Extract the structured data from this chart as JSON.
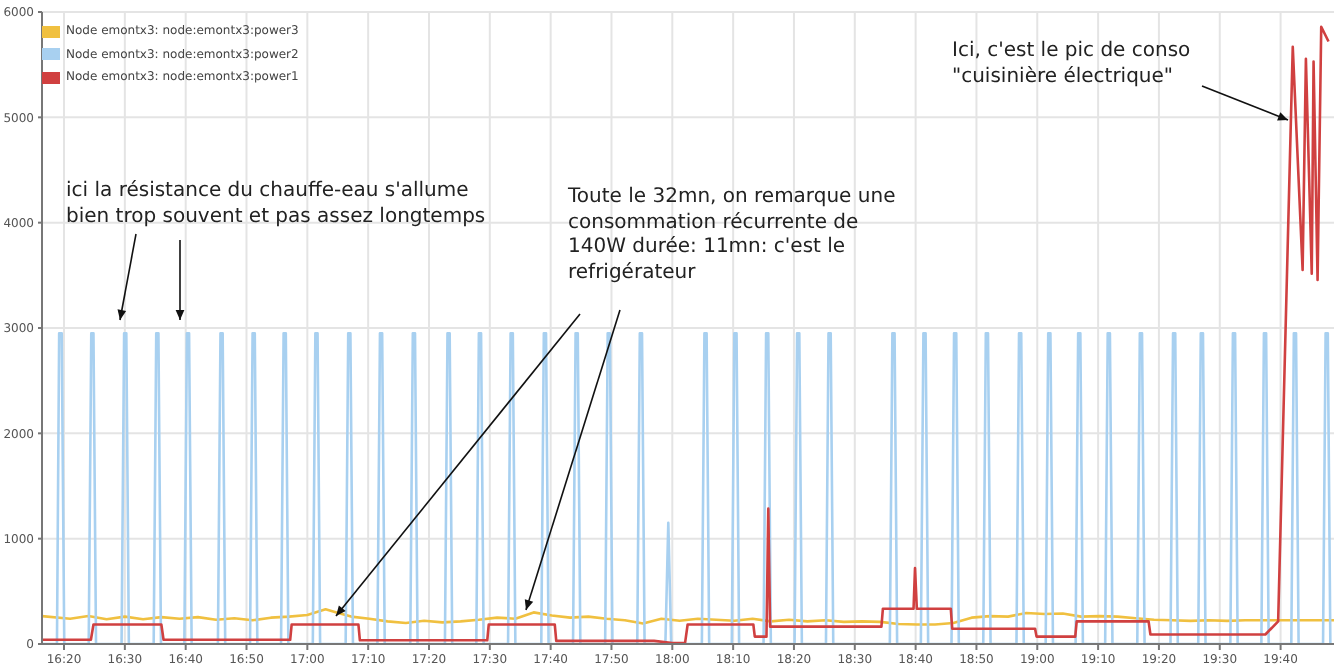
{
  "chart_data": {
    "type": "line",
    "xlim": [
      16.273,
      19.813
    ],
    "ylim": [
      0,
      6000
    ],
    "xticks": [
      {
        "value": 16.3333,
        "label": "16:20"
      },
      {
        "value": 16.5,
        "label": "16:30"
      },
      {
        "value": 16.6667,
        "label": "16:40"
      },
      {
        "value": 16.8333,
        "label": "16:50"
      },
      {
        "value": 17,
        "label": "17:00"
      },
      {
        "value": 17.1667,
        "label": "17:10"
      },
      {
        "value": 17.3333,
        "label": "17:20"
      },
      {
        "value": 17.5,
        "label": "17:30"
      },
      {
        "value": 17.6667,
        "label": "17:40"
      },
      {
        "value": 17.8333,
        "label": "17:50"
      },
      {
        "value": 18,
        "label": "18:00"
      },
      {
        "value": 18.1667,
        "label": "18:10"
      },
      {
        "value": 18.3333,
        "label": "18:20"
      },
      {
        "value": 18.5,
        "label": "18:30"
      },
      {
        "value": 18.6667,
        "label": "18:40"
      },
      {
        "value": 18.8333,
        "label": "18:50"
      },
      {
        "value": 19,
        "label": "19:00"
      },
      {
        "value": 19.1667,
        "label": "19:10"
      },
      {
        "value": 19.3333,
        "label": "19:20"
      },
      {
        "value": 19.5,
        "label": "19:30"
      },
      {
        "value": 19.6667,
        "label": "19:40"
      }
    ],
    "yticks": [
      0,
      1000,
      2000,
      3000,
      4000,
      5000,
      6000
    ],
    "grid": true,
    "legend": "top left",
    "marker": "none",
    "line_style": "solid",
    "annotations": [
      "ici la résistance du chauffe-eau s'allume\nbien trop souvent et pas assez longtemps",
      "Toute le 32mn, on remarque une\nconsommation récurrente de\n140W durée: 11mn: c'est le\nrefrigérateur",
      "Ici, c'est le pic de conso\n\"cuisinière électrique\""
    ],
    "series": [
      {
        "name": "Node emontx3: node:emontx3:power3",
        "color": "#f0c040",
        "x": [
          16.273,
          16.35,
          16.4,
          16.45,
          16.5,
          16.55,
          16.6,
          16.65,
          16.7,
          16.75,
          16.8,
          16.85,
          16.9,
          16.95,
          17,
          17.05,
          17.08,
          17.12,
          17.17,
          17.22,
          17.27,
          17.32,
          17.37,
          17.42,
          17.47,
          17.52,
          17.57,
          17.62,
          17.67,
          17.72,
          17.77,
          17.82,
          17.87,
          17.92,
          17.97,
          18.02,
          18.07,
          18.12,
          18.17,
          18.22,
          18.27,
          18.32,
          18.37,
          18.42,
          18.47,
          18.52,
          18.57,
          18.62,
          18.67,
          18.72,
          18.77,
          18.82,
          18.87,
          18.92,
          18.97,
          19.02,
          19.07,
          19.12,
          19.17,
          19.22,
          19.27,
          19.32,
          19.37,
          19.42,
          19.47,
          19.52,
          19.57,
          19.62,
          19.67,
          19.72,
          19.77,
          19.813
        ],
        "values": [
          265,
          240,
          265,
          235,
          260,
          235,
          255,
          240,
          255,
          230,
          245,
          225,
          250,
          260,
          275,
          330,
          300,
          260,
          240,
          215,
          200,
          220,
          205,
          215,
          230,
          250,
          240,
          300,
          270,
          250,
          260,
          240,
          225,
          195,
          240,
          220,
          240,
          230,
          220,
          240,
          215,
          230,
          215,
          225,
          210,
          215,
          210,
          190,
          185,
          185,
          200,
          250,
          265,
          260,
          295,
          285,
          290,
          260,
          265,
          260,
          245,
          230,
          225,
          220,
          225,
          220,
          225,
          225,
          225,
          225,
          225,
          225
        ]
      },
      {
        "name": "Node emontx3: node:emontx3:power2",
        "color": "#a8d0f0",
        "x": [
          16.273,
          16.314,
          16.32,
          16.327,
          16.334,
          16.401,
          16.408,
          16.414,
          16.421,
          16.491,
          16.498,
          16.504,
          16.511,
          16.579,
          16.586,
          16.592,
          16.599,
          16.663,
          16.67,
          16.676,
          16.683,
          16.755,
          16.762,
          16.768,
          16.775,
          16.843,
          16.85,
          16.856,
          16.863,
          16.928,
          16.935,
          16.941,
          16.948,
          17.015,
          17.022,
          17.028,
          17.035,
          17.105,
          17.112,
          17.118,
          17.125,
          17.192,
          17.199,
          17.205,
          17.212,
          17.282,
          17.289,
          17.295,
          17.302,
          17.377,
          17.384,
          17.39,
          17.397,
          17.463,
          17.47,
          17.476,
          17.483,
          17.55,
          17.557,
          17.563,
          17.57,
          17.641,
          17.648,
          17.654,
          17.661,
          17.728,
          17.735,
          17.741,
          17.748,
          17.816,
          17.823,
          17.829,
          17.836,
          17.904,
          17.911,
          17.917,
          17.924,
          17.981,
          17.989,
          17.997,
          18.081,
          18.088,
          18.094,
          18.101,
          18.163,
          18.17,
          18.176,
          18.183,
          18.25,
          18.257,
          18.263,
          18.27,
          18.335,
          18.342,
          18.348,
          18.355,
          18.421,
          18.428,
          18.434,
          18.441,
          18.596,
          18.603,
          18.609,
          18.616,
          18.681,
          18.688,
          18.694,
          18.701,
          18.765,
          18.772,
          18.778,
          18.785,
          18.852,
          18.859,
          18.865,
          18.872,
          18.943,
          18.95,
          18.956,
          18.963,
          19.023,
          19.03,
          19.036,
          19.043,
          19.105,
          19.112,
          19.118,
          19.125,
          19.186,
          19.193,
          19.199,
          19.206,
          19.274,
          19.281,
          19.287,
          19.294,
          19.365,
          19.372,
          19.378,
          19.385,
          19.441,
          19.448,
          19.454,
          19.461,
          19.529,
          19.536,
          19.542,
          19.549,
          19.614,
          19.621,
          19.627,
          19.634,
          19.696,
          19.703,
          19.709,
          19.716,
          19.783,
          19.79,
          19.796,
          19.803
        ],
        "values": [
          0,
          0,
          2950,
          2950,
          0,
          0,
          2950,
          2950,
          0,
          0,
          2950,
          2950,
          0,
          0,
          2950,
          2950,
          0,
          0,
          2950,
          2950,
          0,
          0,
          2950,
          2950,
          0,
          0,
          2950,
          2950,
          0,
          0,
          2950,
          2950,
          0,
          0,
          2950,
          2950,
          0,
          0,
          2950,
          2950,
          0,
          0,
          2950,
          2950,
          0,
          0,
          2950,
          2950,
          0,
          0,
          2950,
          2950,
          0,
          0,
          2950,
          2950,
          0,
          0,
          2950,
          2950,
          0,
          0,
          2950,
          2950,
          0,
          0,
          2950,
          2950,
          0,
          0,
          2950,
          2950,
          0,
          0,
          2950,
          2950,
          0,
          0,
          1150,
          0,
          0,
          2950,
          2950,
          0,
          0,
          2950,
          2950,
          0,
          0,
          2950,
          2950,
          0,
          0,
          2950,
          2950,
          0,
          0,
          2950,
          2950,
          0,
          0,
          2950,
          2950,
          0,
          0,
          2950,
          2950,
          0,
          0,
          2950,
          2950,
          0,
          0,
          2950,
          2950,
          0,
          0,
          2950,
          2950,
          0,
          0,
          2950,
          2950,
          0,
          0,
          2950,
          2950,
          0,
          0,
          2950,
          2950,
          0,
          0,
          2950,
          2950,
          0,
          0,
          2950,
          2950,
          0,
          0,
          2950,
          2950,
          0,
          0,
          2950,
          2950,
          0,
          0,
          2950,
          2950,
          0,
          0,
          2950,
          2950,
          0,
          0,
          2950,
          2950,
          0
        ]
      },
      {
        "name": "Node emontx3: node:emontx3:power1",
        "color": "#d04040",
        "x": [
          16.273,
          16.407,
          16.414,
          16.6,
          16.606,
          16.953,
          16.957,
          17.14,
          17.144,
          17.493,
          17.497,
          17.678,
          17.682,
          17.95,
          18,
          18.035,
          18.042,
          18.222,
          18.226,
          18.258,
          18.263,
          18.268,
          18.573,
          18.577,
          18.661,
          18.665,
          18.67,
          18.763,
          18.767,
          18.994,
          18.998,
          19.104,
          19.108,
          19.305,
          19.31,
          19.625,
          19.66,
          19.7,
          19.727,
          19.736,
          19.752,
          19.757,
          19.768,
          19.778,
          19.798
        ],
        "values": [
          40,
          40,
          185,
          185,
          40,
          40,
          185,
          185,
          35,
          35,
          185,
          185,
          30,
          30,
          10,
          10,
          185,
          185,
          70,
          70,
          1285,
          165,
          165,
          335,
          335,
          720,
          335,
          335,
          145,
          145,
          70,
          70,
          215,
          215,
          90,
          90,
          215,
          5670,
          3550,
          5555,
          3515,
          5530,
          3455,
          5860,
          5720
        ]
      }
    ]
  }
}
